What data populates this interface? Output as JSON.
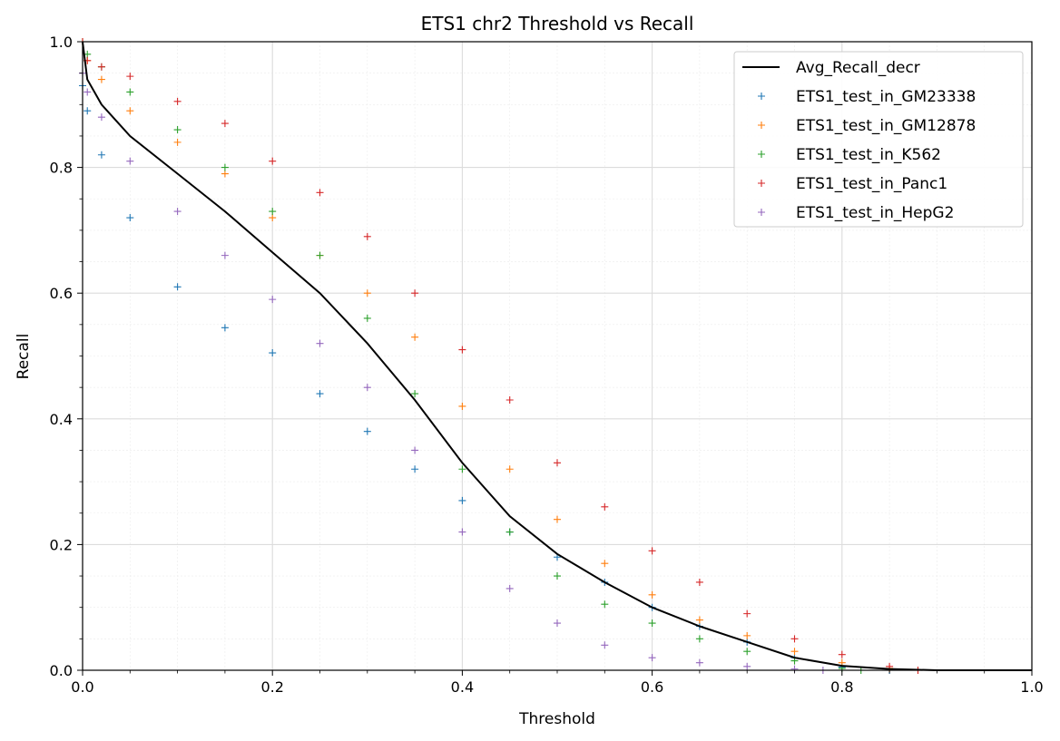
{
  "chart_data": {
    "type": "scatter",
    "title": "ETS1 chr2 Threshold vs Recall",
    "xlabel": "Threshold",
    "ylabel": "Recall",
    "xlim": [
      0.0,
      1.0
    ],
    "ylim": [
      0.0,
      1.0
    ],
    "xticks": [
      "0.0",
      "0.2",
      "0.4",
      "0.6",
      "0.8",
      "1.0"
    ],
    "yticks": [
      "0.0",
      "0.2",
      "0.4",
      "0.6",
      "0.8",
      "1.0"
    ],
    "grid": true,
    "minor_grid": true,
    "legend_position": "top-right",
    "line": {
      "name": "Avg_Recall_decr",
      "color": "#000000",
      "x": [
        0.0,
        0.005,
        0.02,
        0.05,
        0.1,
        0.15,
        0.2,
        0.25,
        0.3,
        0.35,
        0.4,
        0.45,
        0.5,
        0.55,
        0.6,
        0.65,
        0.7,
        0.75,
        0.8,
        0.85,
        0.9,
        1.0
      ],
      "y": [
        1.0,
        0.94,
        0.9,
        0.85,
        0.79,
        0.73,
        0.665,
        0.6,
        0.52,
        0.43,
        0.33,
        0.245,
        0.185,
        0.14,
        0.1,
        0.07,
        0.045,
        0.02,
        0.007,
        0.002,
        0.0,
        0.0
      ]
    },
    "series": [
      {
        "name": "ETS1_test_in_GM23338",
        "color": "#1f77b4",
        "x": [
          0.0,
          0.005,
          0.02,
          0.05,
          0.1,
          0.15,
          0.2,
          0.25,
          0.3,
          0.35,
          0.4,
          0.45,
          0.5,
          0.55,
          0.6,
          0.65,
          0.7,
          0.75,
          0.8,
          0.85
        ],
        "y": [
          0.93,
          0.89,
          0.82,
          0.72,
          0.61,
          0.545,
          0.505,
          0.44,
          0.38,
          0.32,
          0.27,
          0.22,
          0.18,
          0.14,
          0.1,
          0.07,
          0.045,
          0.02,
          0.005,
          0.0
        ]
      },
      {
        "name": "ETS1_test_in_GM12878",
        "color": "#ff7f0e",
        "x": [
          0.0,
          0.005,
          0.02,
          0.05,
          0.1,
          0.15,
          0.2,
          0.25,
          0.3,
          0.35,
          0.4,
          0.45,
          0.5,
          0.55,
          0.6,
          0.65,
          0.7,
          0.75,
          0.8,
          0.85,
          0.88
        ],
        "y": [
          1.0,
          0.97,
          0.94,
          0.89,
          0.84,
          0.79,
          0.72,
          0.66,
          0.6,
          0.53,
          0.42,
          0.32,
          0.24,
          0.17,
          0.12,
          0.08,
          0.055,
          0.03,
          0.012,
          0.003,
          0.0
        ]
      },
      {
        "name": "ETS1_test_in_K562",
        "color": "#2ca02c",
        "x": [
          0.0,
          0.005,
          0.02,
          0.05,
          0.1,
          0.15,
          0.2,
          0.25,
          0.3,
          0.35,
          0.4,
          0.45,
          0.5,
          0.55,
          0.6,
          0.65,
          0.7,
          0.75,
          0.8,
          0.82
        ],
        "y": [
          1.0,
          0.98,
          0.96,
          0.92,
          0.86,
          0.8,
          0.73,
          0.66,
          0.56,
          0.44,
          0.32,
          0.22,
          0.15,
          0.105,
          0.075,
          0.05,
          0.03,
          0.015,
          0.003,
          0.0
        ]
      },
      {
        "name": "ETS1_test_in_Panc1",
        "color": "#d62728",
        "x": [
          0.0,
          0.005,
          0.02,
          0.05,
          0.1,
          0.15,
          0.2,
          0.25,
          0.3,
          0.35,
          0.4,
          0.45,
          0.5,
          0.55,
          0.6,
          0.65,
          0.7,
          0.75,
          0.8,
          0.85,
          0.88
        ],
        "y": [
          1.0,
          0.97,
          0.96,
          0.945,
          0.905,
          0.87,
          0.81,
          0.76,
          0.69,
          0.6,
          0.51,
          0.43,
          0.33,
          0.26,
          0.19,
          0.14,
          0.09,
          0.05,
          0.025,
          0.006,
          0.0
        ]
      },
      {
        "name": "ETS1_test_in_HepG2",
        "color": "#9467bd",
        "x": [
          0.0,
          0.005,
          0.02,
          0.05,
          0.1,
          0.15,
          0.2,
          0.25,
          0.3,
          0.35,
          0.4,
          0.45,
          0.5,
          0.55,
          0.6,
          0.65,
          0.7,
          0.75,
          0.78
        ],
        "y": [
          0.95,
          0.92,
          0.88,
          0.81,
          0.73,
          0.66,
          0.59,
          0.52,
          0.45,
          0.35,
          0.22,
          0.13,
          0.075,
          0.04,
          0.02,
          0.012,
          0.006,
          0.002,
          0.0
        ]
      }
    ]
  }
}
